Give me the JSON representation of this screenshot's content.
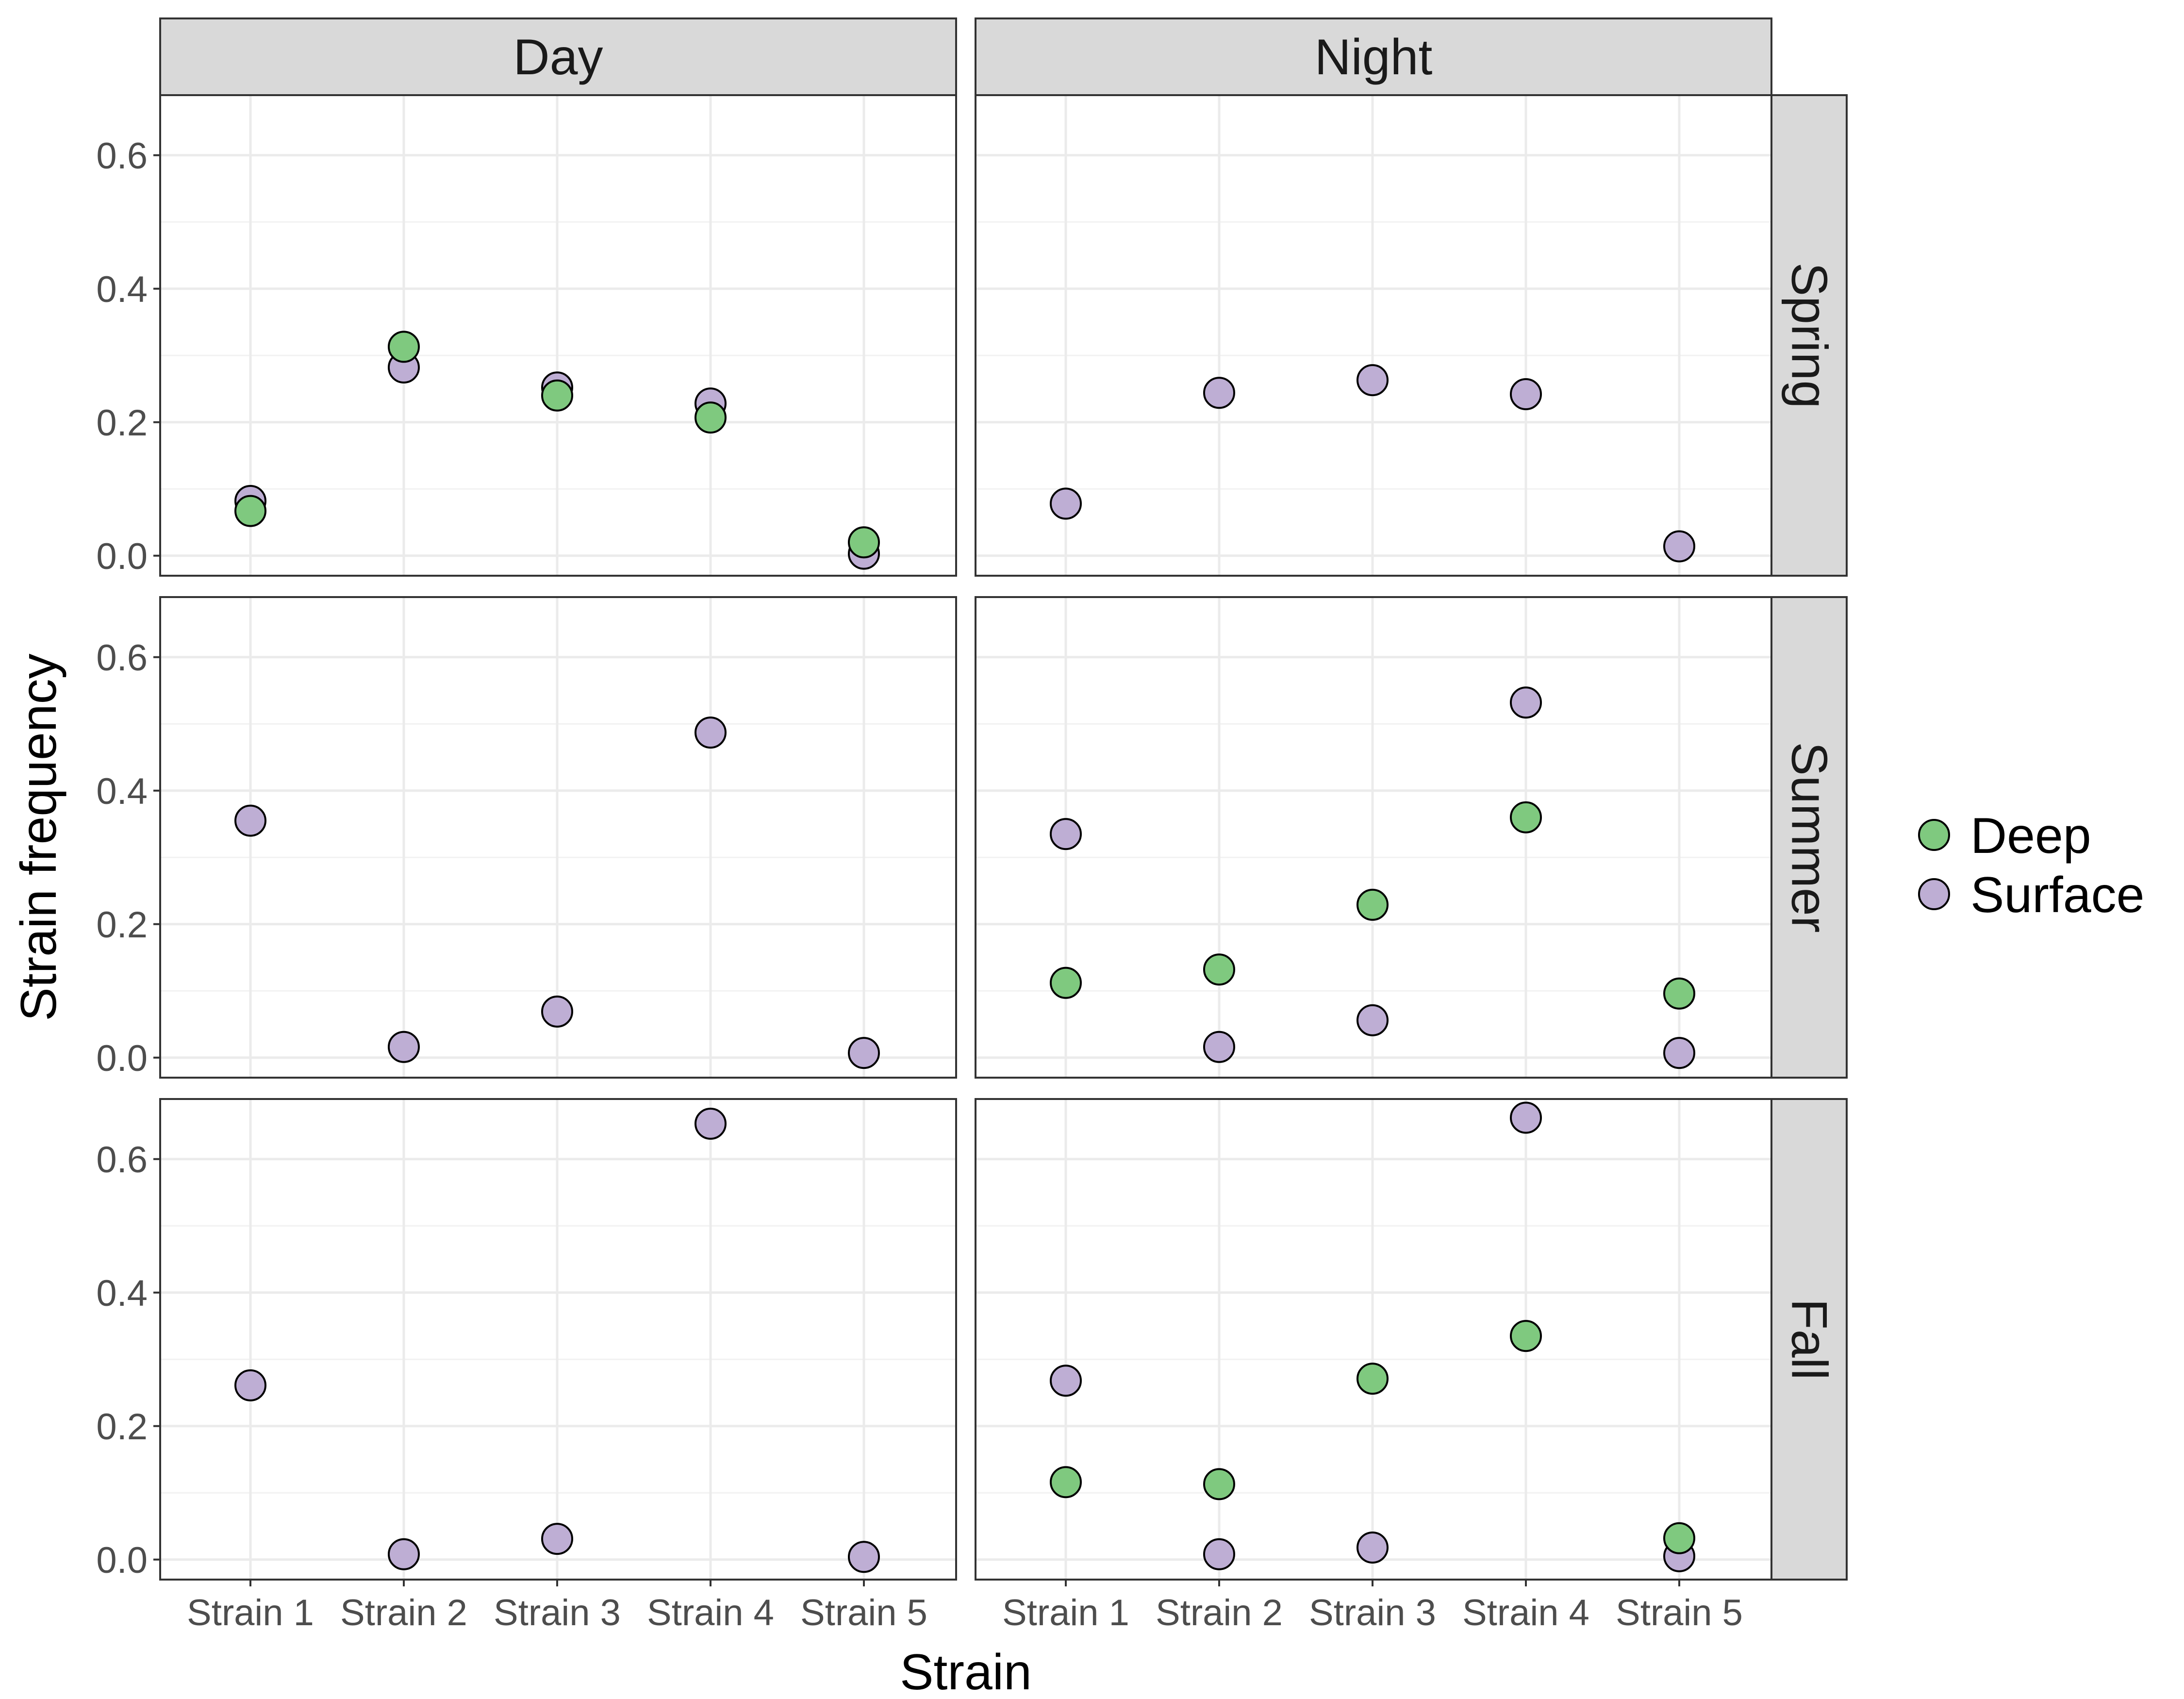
{
  "chart_data": {
    "type": "scatter",
    "facet_columns": [
      "Day",
      "Night"
    ],
    "facet_rows": [
      "Spring",
      "Summer",
      "Fall"
    ],
    "categories": [
      "Strain 1",
      "Strain 2",
      "Strain 3",
      "Strain 4",
      "Strain 5"
    ],
    "xlabel": "Strain",
    "ylabel": "Strain frequency",
    "ylim": [
      -0.03,
      0.69
    ],
    "yticks": [
      0.0,
      0.2,
      0.4,
      0.6
    ],
    "ytick_labels": [
      "0.0",
      "0.2",
      "0.4",
      "0.6"
    ],
    "grid": true,
    "legend_position": "right",
    "series": [
      {
        "name": "Deep",
        "color": "#7fc97f"
      },
      {
        "name": "Surface",
        "color": "#beaed4"
      }
    ],
    "panels": [
      {
        "row": "Spring",
        "col": "Day",
        "Deep": [
          0.067,
          0.313,
          0.24,
          0.207,
          0.02
        ],
        "Surface": [
          0.082,
          0.282,
          0.252,
          0.228,
          0.003
        ]
      },
      {
        "row": "Spring",
        "col": "Night",
        "Deep": [
          null,
          null,
          null,
          null,
          null
        ],
        "Surface": [
          0.078,
          0.244,
          0.263,
          0.242,
          0.014
        ]
      },
      {
        "row": "Summer",
        "col": "Day",
        "Deep": [
          null,
          null,
          null,
          null,
          null
        ],
        "Surface": [
          0.355,
          0.016,
          0.069,
          0.487,
          0.007
        ]
      },
      {
        "row": "Summer",
        "col": "Night",
        "Deep": [
          0.112,
          0.132,
          0.229,
          0.36,
          0.096
        ],
        "Surface": [
          0.335,
          0.016,
          0.056,
          0.532,
          0.007
        ]
      },
      {
        "row": "Fall",
        "col": "Day",
        "Deep": [
          null,
          null,
          null,
          null,
          null
        ],
        "Surface": [
          0.261,
          0.008,
          0.031,
          0.653,
          0.004
        ]
      },
      {
        "row": "Fall",
        "col": "Night",
        "Deep": [
          0.116,
          0.113,
          0.271,
          0.335,
          0.032
        ],
        "Surface": [
          0.268,
          0.008,
          0.018,
          0.662,
          0.005
        ]
      }
    ]
  }
}
